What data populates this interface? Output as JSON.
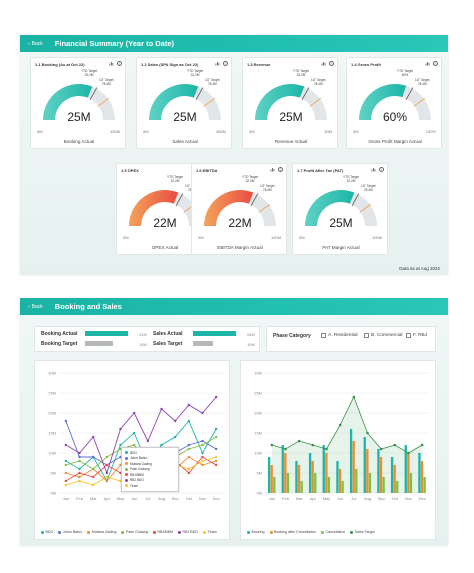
{
  "colors": {
    "teal": "#1cb5a6",
    "grey": "#b5b9bb",
    "red": "#e94c41",
    "orange": "#f08a2e",
    "accent_header": "#22bdae"
  },
  "top_panel": {
    "back_label": "Back",
    "title": "Financial Summary (Year to Date)",
    "footnote": "Data as at Aug 2022",
    "cards": [
      {
        "id": "booking",
        "title": "1.1 Booking (As at Oct 22)",
        "value": "25M",
        "min": "0M",
        "max": "450M",
        "label": "Booking Actual",
        "ytd_label": "YTD Target",
        "ytd_value": "32.2M",
        "fy_label": "1G' Target",
        "fy_value": "78.4M",
        "fill_fraction": 0.62,
        "color": "teal"
      },
      {
        "id": "sales",
        "title": "1.2 Sales (SPA Sign as Oct 22)",
        "value": "25M",
        "min": "0M",
        "max": "450M",
        "label": "Sales Actual",
        "ytd_label": "YTD Target",
        "ytd_value": "32.2M",
        "fy_label": "1G' Target",
        "fy_value": "78.4M",
        "fill_fraction": 0.62,
        "color": "teal"
      },
      {
        "id": "revenue",
        "title": "1.3 Revenue",
        "value": "25M",
        "min": "0M",
        "max": "30M",
        "label": "Revenue Actual",
        "ytd_label": "YTD Target",
        "ytd_value": "32.2M",
        "fy_label": "1G' Target",
        "fy_value": "78.4M",
        "fill_fraction": 0.62,
        "color": "teal"
      },
      {
        "id": "gross-profit",
        "title": "1.4 Gross Profit",
        "value": "60%",
        "min": "0M",
        "max": "100%",
        "label": "Gross Profit Margin Actual",
        "ytd_label": "YTD Target",
        "ytd_value": "80%",
        "fy_label": "1G' Target",
        "fy_value": "78.4M",
        "fill_fraction": 0.6,
        "color": "teal"
      },
      {
        "id": "opex",
        "title": "1.5 OPEX",
        "value": "22M",
        "min": "0M",
        "max": "100M",
        "label": "OPEX Actual",
        "ytd_label": "YTD Target",
        "ytd_value": "32.2M",
        "fy_label": "1G' Target",
        "fy_value": "78.4M",
        "fill_fraction": 0.62,
        "color": "red"
      },
      {
        "id": "ebitda",
        "title": "1.6 EBITDA",
        "value": "22M",
        "min": "0M",
        "max": "100M",
        "label": "EBITDA Margin Actual",
        "ytd_label": "YTD Target",
        "ytd_value": "32.2M",
        "fy_label": "1G' Target",
        "fy_value": "78.4M",
        "fill_fraction": 0.62,
        "color": "red"
      },
      {
        "id": "pat",
        "title": "1.7 Profit After Tax (PAT)",
        "value": "25M",
        "min": "0M",
        "max": "100M",
        "label": "PAT Margin Actual",
        "ytd_label": "YTD Target",
        "ytd_value": "32.2M",
        "fy_label": "1G' Target",
        "fy_value": "78.4M",
        "fill_fraction": 0.62,
        "color": "teal"
      }
    ]
  },
  "bottom_panel": {
    "back_label": "Back",
    "title": "Booking and Sales",
    "kpis": {
      "booking_actual_label": "Booking Actual",
      "booking_actual_value": "24M",
      "booking_actual_fraction": 0.85,
      "booking_target_label": "Booking Target",
      "booking_target_value": "15M",
      "booking_target_fraction": 0.55,
      "sales_actual_label": "Sales Actual",
      "sales_actual_value": "24M",
      "sales_actual_fraction": 0.85,
      "sales_target_label": "Sales Target",
      "sales_target_value": "10M",
      "sales_target_fraction": 0.4
    },
    "phase": {
      "label": "Phase Category",
      "options": [
        "A. Residential",
        "B. Commercial",
        "F. RBJ"
      ]
    },
    "tooltip_items": [
      "BDO",
      "Johor Bahru",
      "Mutiara Gading",
      "Pasir Gudang",
      "RBJ/BBM",
      "RBJ BDO",
      "Tiram"
    ]
  },
  "chart_data": [
    {
      "type": "line",
      "title": "",
      "xlabel": "",
      "ylabel": "",
      "categories": [
        "Jan",
        "Feb",
        "Mar",
        "Apr",
        "May",
        "Jun",
        "Jul",
        "Aug",
        "Sep",
        "Oct",
        "Nov",
        "Dec"
      ],
      "yticks": [
        "0M",
        "5M",
        "10M",
        "15M",
        "20M",
        "25M",
        "30M"
      ],
      "ylim": [
        0,
        30
      ],
      "series": [
        {
          "name": "BDO",
          "color": "#1cb5a6",
          "values": [
            8,
            6,
            9,
            3,
            12,
            15,
            7,
            12,
            14,
            18,
            10,
            16
          ]
        },
        {
          "name": "Johor Bahru",
          "color": "#5b6ed0",
          "values": [
            18,
            9,
            9,
            7,
            9,
            10,
            9,
            11,
            10,
            12,
            13,
            11
          ]
        },
        {
          "name": "Mutiara Gading",
          "color": "#f08a2e",
          "values": [
            5,
            4,
            6,
            3,
            7,
            6,
            5,
            8,
            6,
            9,
            7,
            8
          ]
        },
        {
          "name": "Pasir Gudang",
          "color": "#7cc244",
          "values": [
            7,
            8,
            6,
            9,
            11,
            12,
            8,
            10,
            9,
            11,
            12,
            14
          ]
        },
        {
          "name": "RBJ/BBM",
          "color": "#e94c41",
          "values": [
            3,
            5,
            4,
            7,
            5,
            4,
            9,
            6,
            8,
            5,
            9,
            7
          ]
        },
        {
          "name": "RBJ BDO",
          "color": "#8e44ad",
          "values": [
            12,
            10,
            14,
            5,
            16,
            20,
            13,
            21,
            18,
            22,
            20,
            24
          ]
        },
        {
          "name": "Tiram",
          "color": "#f5c32c",
          "values": [
            2,
            3,
            2,
            4,
            3,
            4,
            6,
            5,
            7,
            6,
            8,
            9
          ]
        }
      ]
    },
    {
      "type": "bar",
      "title": "",
      "xlabel": "",
      "ylabel": "",
      "categories": [
        "Jan",
        "Feb",
        "Mar",
        "Apr",
        "May",
        "Jun",
        "Jul",
        "Aug",
        "Sep",
        "Oct",
        "Nov",
        "Dec"
      ],
      "yticks": [
        "0M",
        "5M",
        "10M",
        "15M",
        "20M",
        "25M",
        "30M"
      ],
      "ylim": [
        0,
        30
      ],
      "series": [
        {
          "name": "Booking",
          "color": "#1cb5a6",
          "kind": "bar",
          "values": [
            9,
            12,
            8,
            10,
            12,
            8,
            16,
            14,
            11,
            9,
            12,
            10
          ]
        },
        {
          "name": "Booking after Cancellation",
          "color": "#f08a2e",
          "kind": "bar",
          "values": [
            7,
            10,
            7,
            8,
            10,
            6,
            13,
            11,
            9,
            7,
            10,
            8
          ]
        },
        {
          "name": "Cancellation",
          "color": "#7cc244",
          "kind": "bar",
          "values": [
            4,
            5,
            3,
            5,
            4,
            3,
            6,
            5,
            4,
            3,
            5,
            4
          ]
        },
        {
          "name": "Sales Target",
          "color": "#3c8f4a",
          "kind": "line",
          "values": [
            12,
            11,
            13,
            12,
            11,
            17,
            24,
            15,
            11,
            12,
            10,
            12
          ]
        }
      ]
    }
  ]
}
